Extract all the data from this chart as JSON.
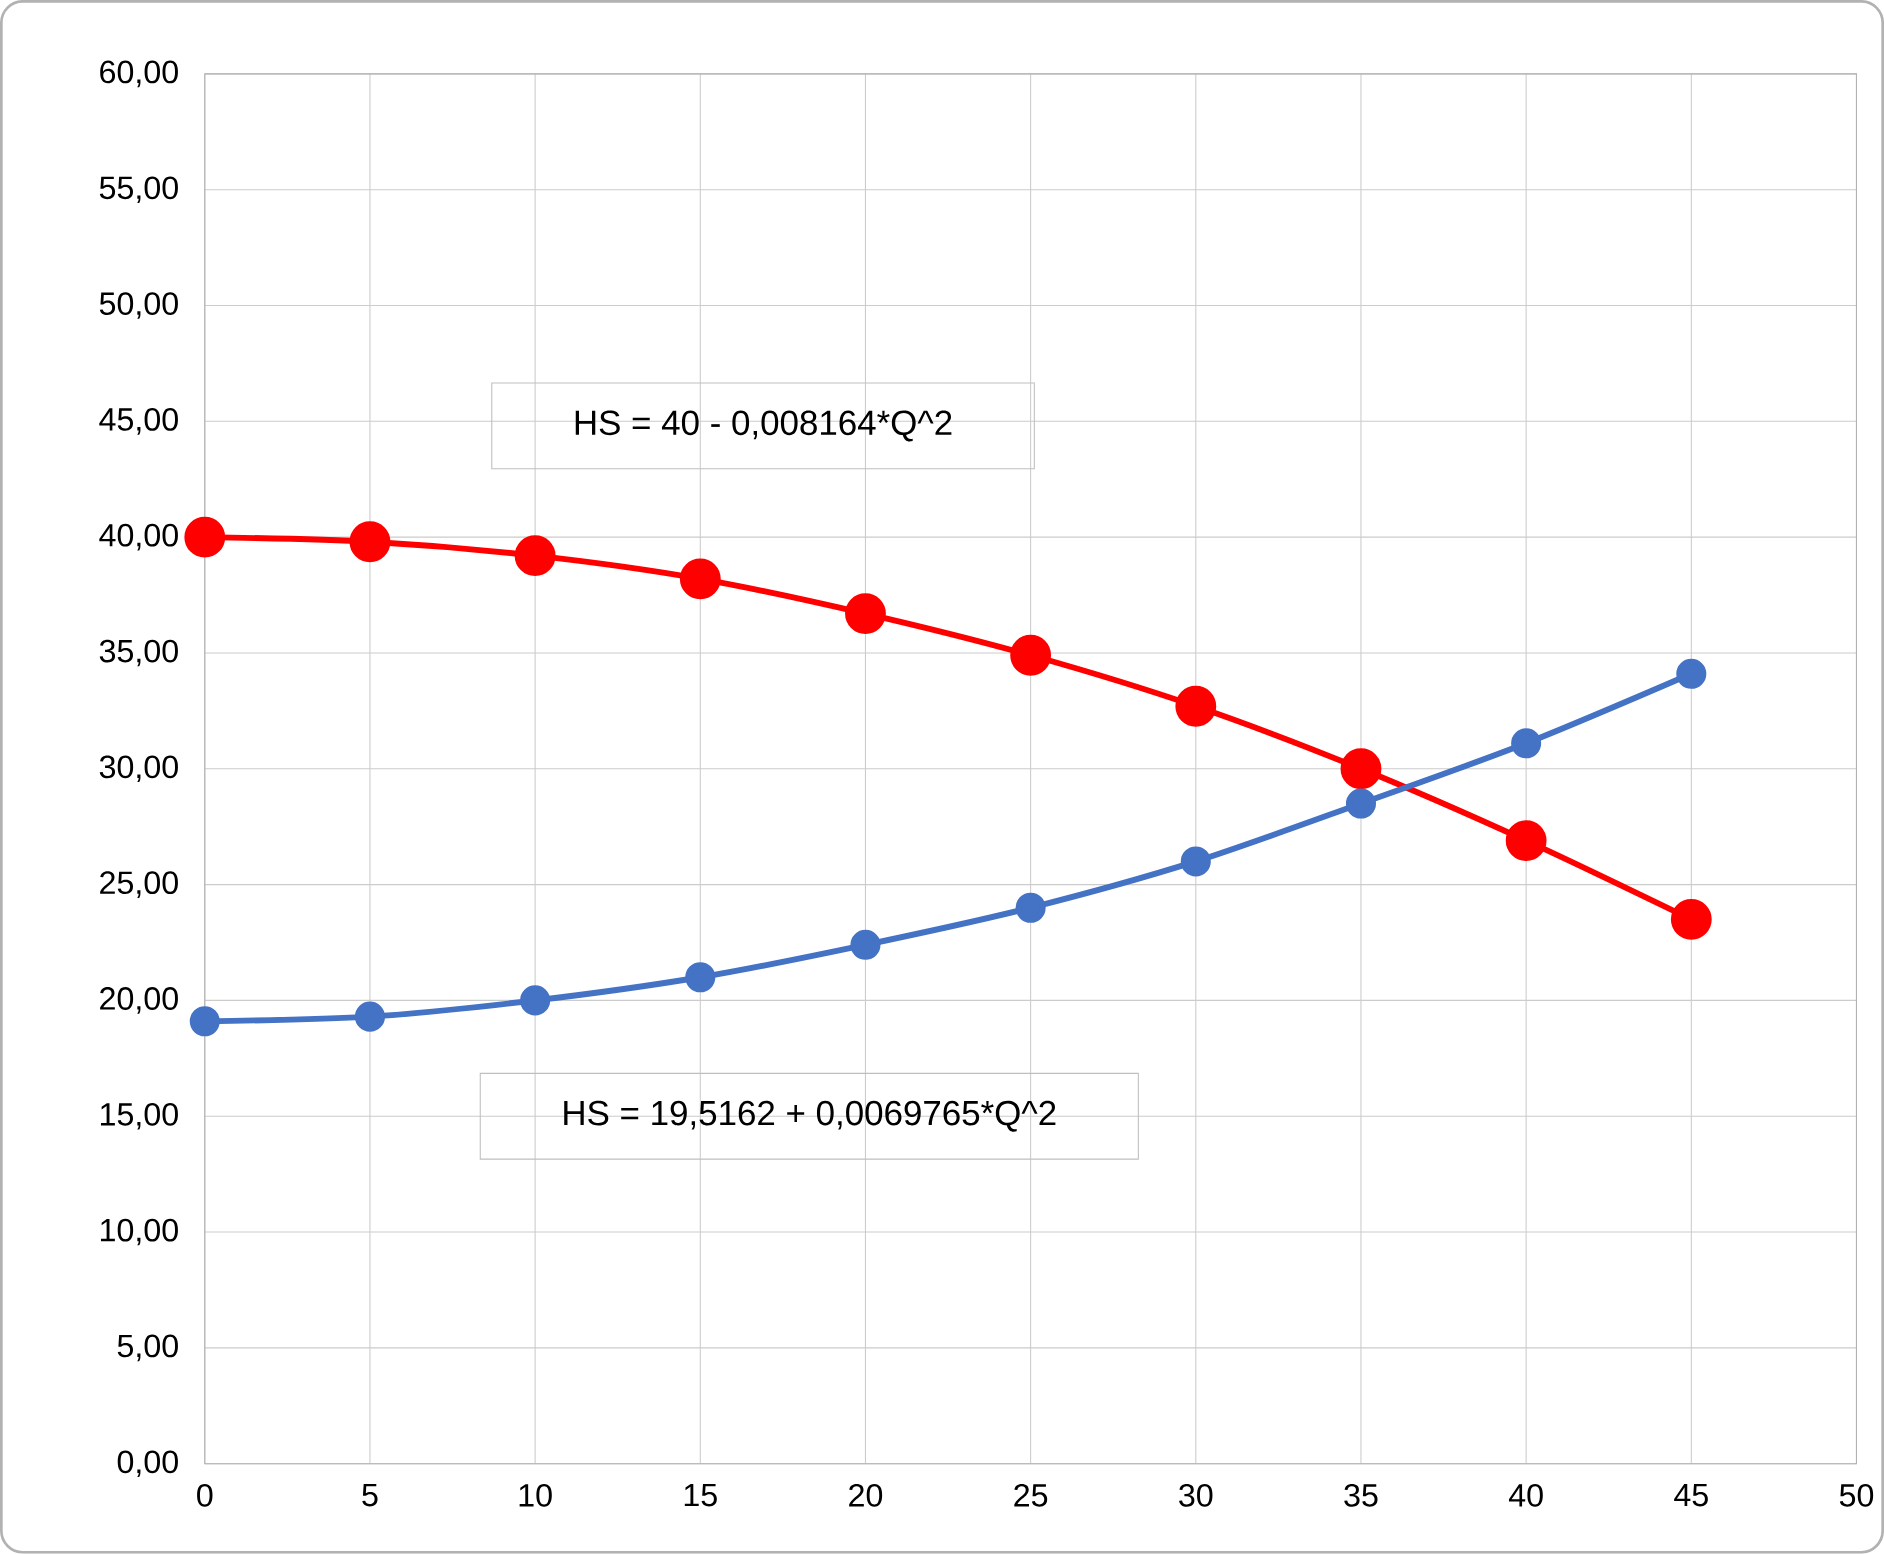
{
  "chart_data": {
    "type": "line",
    "x": [
      0,
      5,
      10,
      15,
      20,
      25,
      30,
      35,
      40,
      45
    ],
    "series": [
      {
        "color": "#ff0000",
        "values": [
          40.0,
          39.8,
          39.2,
          38.2,
          36.7,
          34.9,
          32.7,
          30.0,
          26.9,
          23.5
        ]
      },
      {
        "color": "#4472c4",
        "values": [
          19.1,
          19.3,
          20.0,
          21.0,
          22.4,
          24.0,
          26.0,
          28.5,
          31.1,
          34.1
        ]
      }
    ],
    "xlim": [
      0,
      50
    ],
    "xticks": [
      0,
      5,
      10,
      15,
      20,
      25,
      30,
      35,
      40,
      45,
      50
    ],
    "ylim": [
      0,
      60
    ],
    "yticks": [
      {
        "value": 0,
        "label": "0,00"
      },
      {
        "value": 5,
        "label": "5,00"
      },
      {
        "value": 10,
        "label": "10,00"
      },
      {
        "value": 15,
        "label": "15,00"
      },
      {
        "value": 20,
        "label": "20,00"
      },
      {
        "value": 25,
        "label": "25,00"
      },
      {
        "value": 30,
        "label": "30,00"
      },
      {
        "value": 35,
        "label": "35,00"
      },
      {
        "value": 40,
        "label": "40,00"
      },
      {
        "value": 45,
        "label": "45,00"
      },
      {
        "value": 50,
        "label": "50,00"
      },
      {
        "value": 55,
        "label": "55,00"
      },
      {
        "value": 60,
        "label": "60,00"
      }
    ],
    "grid": true,
    "marker": "circle",
    "line_style": "solid",
    "annotations": [
      "HS = 40 - 0,008164*Q^2",
      "HS = 19,5162 + 0,0069765*Q^2"
    ]
  }
}
